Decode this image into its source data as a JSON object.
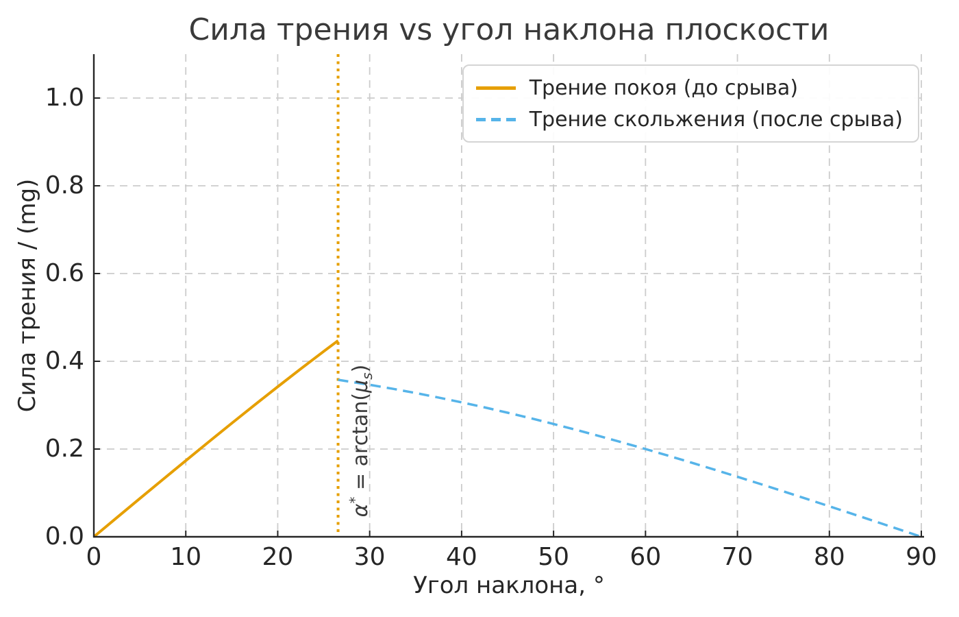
{
  "chart_data": {
    "type": "line",
    "title": "Сила трения vs угол наклона плоскости",
    "xlabel": "Угол наклона, °",
    "ylabel": "Сила трения / (mg)",
    "xlim": [
      0,
      90
    ],
    "ylim": [
      0,
      1.1
    ],
    "xticks": [
      0,
      10,
      20,
      30,
      40,
      50,
      60,
      70,
      80,
      90
    ],
    "yticks": [
      0,
      0.2,
      0.4,
      0.6,
      0.8,
      1.0
    ],
    "ytick_labels": [
      "0.0",
      "0.2",
      "0.4",
      "0.6",
      "0.8",
      "1.0"
    ],
    "grid": true,
    "grid_color": "#cccccc",
    "grid_style": "dashed",
    "spine_color": "#262626",
    "legend_position": "upper right",
    "series": [
      {
        "name": "Трение покоя (до срыва)",
        "color": "#E69F00",
        "line_style": "solid",
        "x": [
          0,
          2.5,
          5,
          7.5,
          10,
          12.5,
          15,
          17.5,
          20,
          22.5,
          25,
          26.565
        ],
        "y": [
          0,
          0.0436,
          0.0872,
          0.1305,
          0.1736,
          0.2164,
          0.2588,
          0.3007,
          0.342,
          0.3827,
          0.4226,
          0.4472
        ]
      },
      {
        "name": "Трение скольжения (после срыва)",
        "color": "#56B4E9",
        "line_style": "dashed",
        "x": [
          26.565,
          30,
          32.5,
          35,
          37.5,
          40,
          42.5,
          45,
          47.5,
          50,
          52.5,
          55,
          57.5,
          60,
          62.5,
          65,
          67.5,
          70,
          72.5,
          75,
          77.5,
          80,
          82.5,
          85,
          87.5,
          90
        ],
        "y": [
          0.3578,
          0.3464,
          0.3374,
          0.3277,
          0.3173,
          0.3064,
          0.2949,
          0.2828,
          0.2703,
          0.2571,
          0.2435,
          0.2294,
          0.2149,
          0.2,
          0.1847,
          0.169,
          0.1531,
          0.1368,
          0.1203,
          0.1035,
          0.0866,
          0.0695,
          0.0522,
          0.0349,
          0.0175,
          0
        ]
      }
    ],
    "vline": {
      "x": 26.565,
      "color": "#E69F00",
      "style": "dotted",
      "annotation_segments": [
        {
          "text": "α",
          "style": "italic"
        },
        {
          "text": "*",
          "style": "sup"
        },
        {
          "text": " = arctan(",
          "style": "normal"
        },
        {
          "text": "μ",
          "style": "italic"
        },
        {
          "text": "s",
          "style": "sub-italic"
        },
        {
          "text": ")",
          "style": "normal"
        }
      ]
    }
  }
}
